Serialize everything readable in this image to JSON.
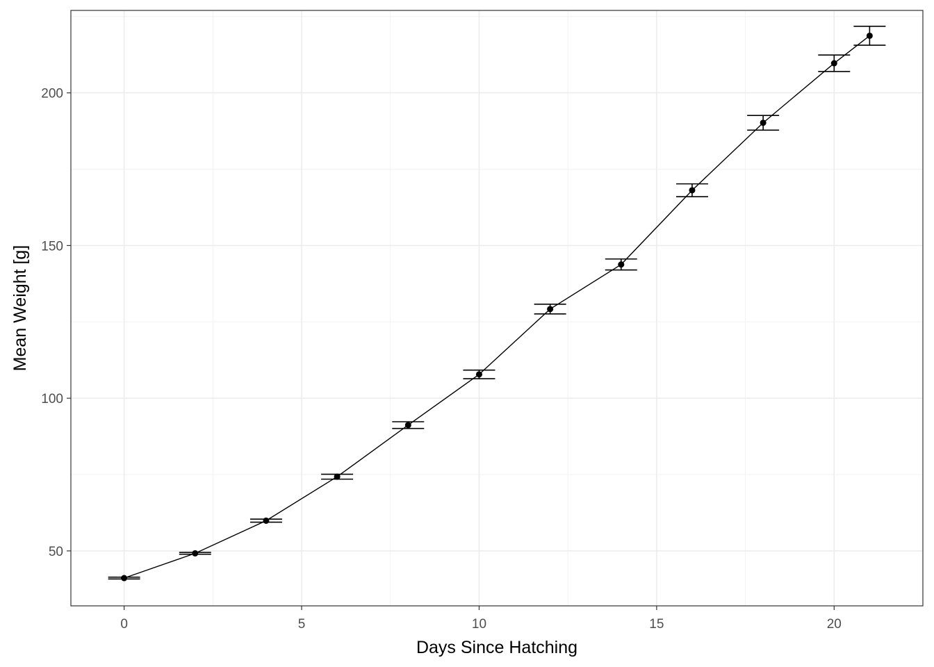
{
  "chart_data": {
    "type": "line",
    "title": "",
    "xlabel": "Days Since Hatching",
    "ylabel": "Mean Weight [g]",
    "xlim": [
      -1.5,
      22.5
    ],
    "ylim": [
      32,
      227
    ],
    "x_ticks": [
      0,
      5,
      10,
      15,
      20
    ],
    "y_ticks": [
      50,
      100,
      150,
      200
    ],
    "grid": true,
    "legend": "none",
    "series": [
      {
        "x": [
          0,
          2,
          4,
          6,
          8,
          10,
          12,
          14,
          16,
          18,
          20,
          21
        ],
        "y": [
          41.1,
          49.2,
          59.9,
          74.3,
          91.2,
          107.8,
          129.2,
          143.8,
          168.1,
          190.2,
          209.7,
          218.7
        ],
        "ymin": [
          40.8,
          48.9,
          59.4,
          73.5,
          90.1,
          106.4,
          127.6,
          142.0,
          166.0,
          187.8,
          207.0,
          215.6
        ],
        "ymax": [
          41.4,
          49.5,
          60.4,
          75.1,
          92.3,
          109.2,
          130.8,
          145.6,
          170.2,
          192.6,
          212.4,
          221.8
        ]
      }
    ],
    "colors": {
      "series": "#000000",
      "grid": "#ebebeb",
      "panel_border": "#333333"
    }
  }
}
